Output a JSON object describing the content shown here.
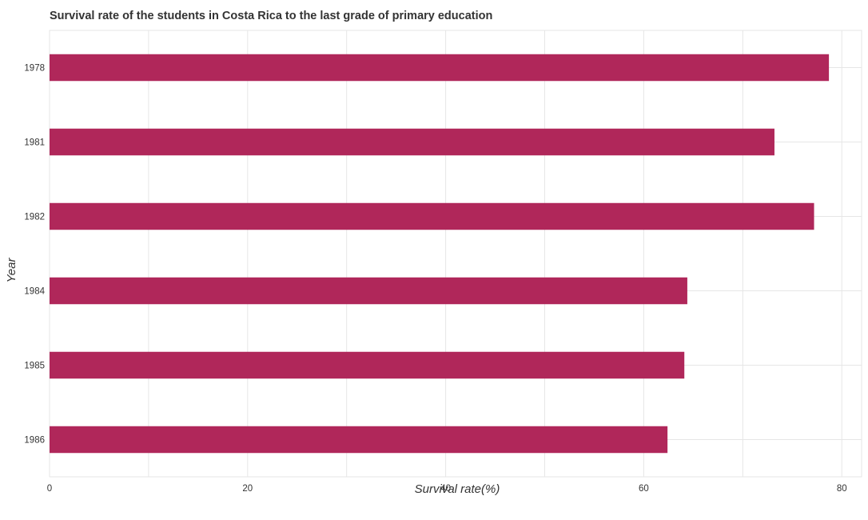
{
  "chart_data": {
    "type": "bar",
    "orientation": "horizontal",
    "title": "Survival rate of the students in Costa Rica to the last grade of primary education",
    "xlabel": "Survival rate(%)",
    "ylabel": "Year",
    "categories": [
      "1978",
      "1981",
      "1982",
      "1984",
      "1985",
      "1986"
    ],
    "values": [
      78.7,
      73.2,
      77.2,
      64.4,
      64.1,
      62.4
    ],
    "xlim": [
      0,
      82
    ],
    "xticks": [
      0,
      20,
      40,
      60,
      80
    ],
    "grid": true,
    "legend": "none",
    "bar_color": "#b0275a"
  }
}
